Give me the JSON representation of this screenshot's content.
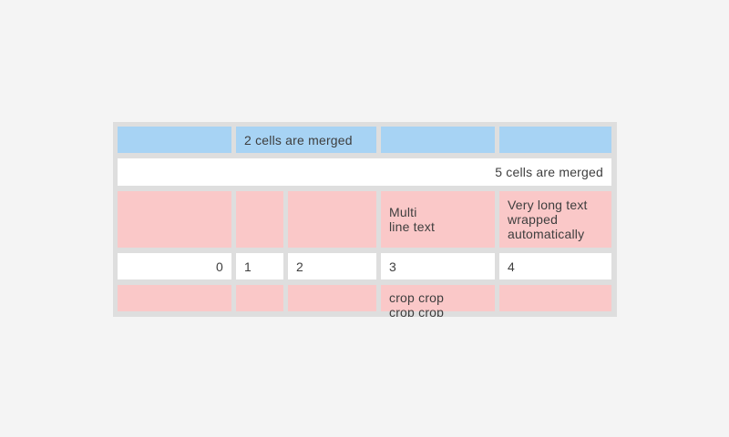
{
  "colors": {
    "page_bg": "#f4f4f4",
    "frame_gray": "#dedede",
    "cell_blue": "#a7d3f4",
    "cell_pink": "#fac8c8",
    "cell_white": "#ffffff",
    "text_color": "#3e3e3e"
  },
  "table": {
    "row1": {
      "merged_label": "2 cells are merged"
    },
    "row2": {
      "merged_label": "5 cells are merged"
    },
    "row3": {
      "cell4": "Multi\nline text",
      "cell5": "Very long text wrapped automatically"
    },
    "row4": {
      "cell1": "0",
      "cell2": "1",
      "cell3": "2",
      "cell4": "3",
      "cell5": "4"
    },
    "row5": {
      "cell4": "crop crop crop crop"
    }
  }
}
